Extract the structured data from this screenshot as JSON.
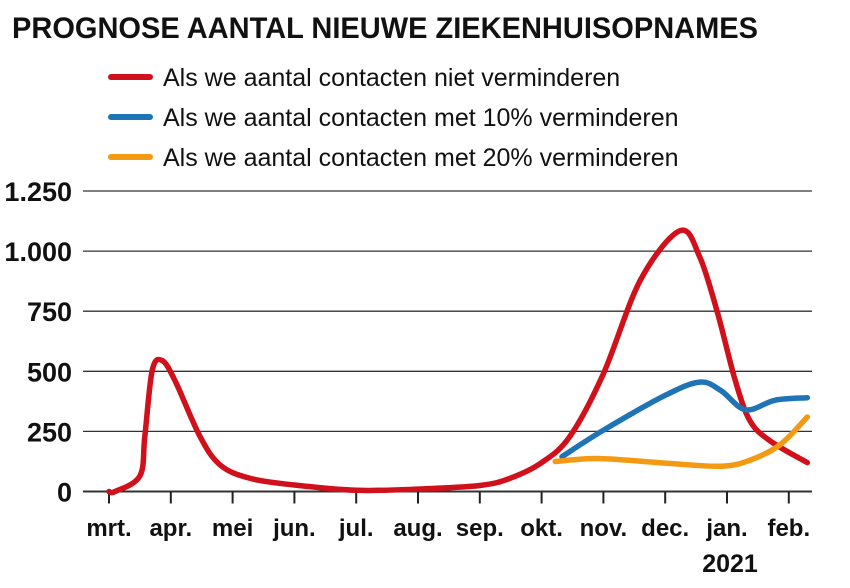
{
  "chart_data": {
    "type": "line",
    "title": "PROGNOSE AANTAL NIEUWE ZIEKENHUISOPNAMES",
    "categories": [
      "mrt.",
      "apr.",
      "mei",
      "jun.",
      "jul.",
      "aug.",
      "sep.",
      "okt.",
      "nov.",
      "dec.",
      "jan.",
      "feb."
    ],
    "year_label": "2021",
    "yticks": [
      0,
      250,
      500,
      750,
      1000,
      1250
    ],
    "ytick_labels": [
      "0",
      "250",
      "500",
      "750",
      "1.000",
      "1.250"
    ],
    "ylim": [
      0,
      1250
    ],
    "grid": true,
    "legend_placement": "top",
    "series": [
      {
        "name": "Als we aantal contacten niet verminderen",
        "color": "#d0101a",
        "points": [
          [
            0,
            0
          ],
          [
            0.1,
            0
          ],
          [
            0.5,
            65
          ],
          [
            0.58,
            230
          ],
          [
            0.7,
            505
          ],
          [
            0.86,
            545
          ],
          [
            1.07,
            460
          ],
          [
            1.47,
            230
          ],
          [
            1.8,
            110
          ],
          [
            2.28,
            55
          ],
          [
            3,
            27
          ],
          [
            4,
            5
          ],
          [
            5,
            10
          ],
          [
            6,
            25
          ],
          [
            6.49,
            55
          ],
          [
            7,
            120
          ],
          [
            7.46,
            230
          ],
          [
            8,
            490
          ],
          [
            8.6,
            880
          ],
          [
            9.24,
            1085
          ],
          [
            9.56,
            975
          ],
          [
            9.85,
            740
          ],
          [
            10.13,
            465
          ],
          [
            10.37,
            295
          ],
          [
            10.7,
            210
          ],
          [
            11.3,
            120
          ]
        ]
      },
      {
        "name": "Als we aantal contacten met 10% verminderen",
        "color": "#1f74b5",
        "points": [
          [
            7.33,
            145
          ],
          [
            8,
            255
          ],
          [
            9,
            400
          ],
          [
            9.56,
            455
          ],
          [
            9.9,
            420
          ],
          [
            10.3,
            340
          ],
          [
            10.78,
            380
          ],
          [
            11.3,
            390
          ]
        ]
      },
      {
        "name": "Als we aantal contacten met 20% verminderen",
        "color": "#f39a12",
        "points": [
          [
            7.22,
            125
          ],
          [
            7.95,
            137
          ],
          [
            9,
            118
          ],
          [
            9.9,
            105
          ],
          [
            10.37,
            130
          ],
          [
            10.86,
            195
          ],
          [
            11.3,
            310
          ]
        ]
      }
    ]
  }
}
